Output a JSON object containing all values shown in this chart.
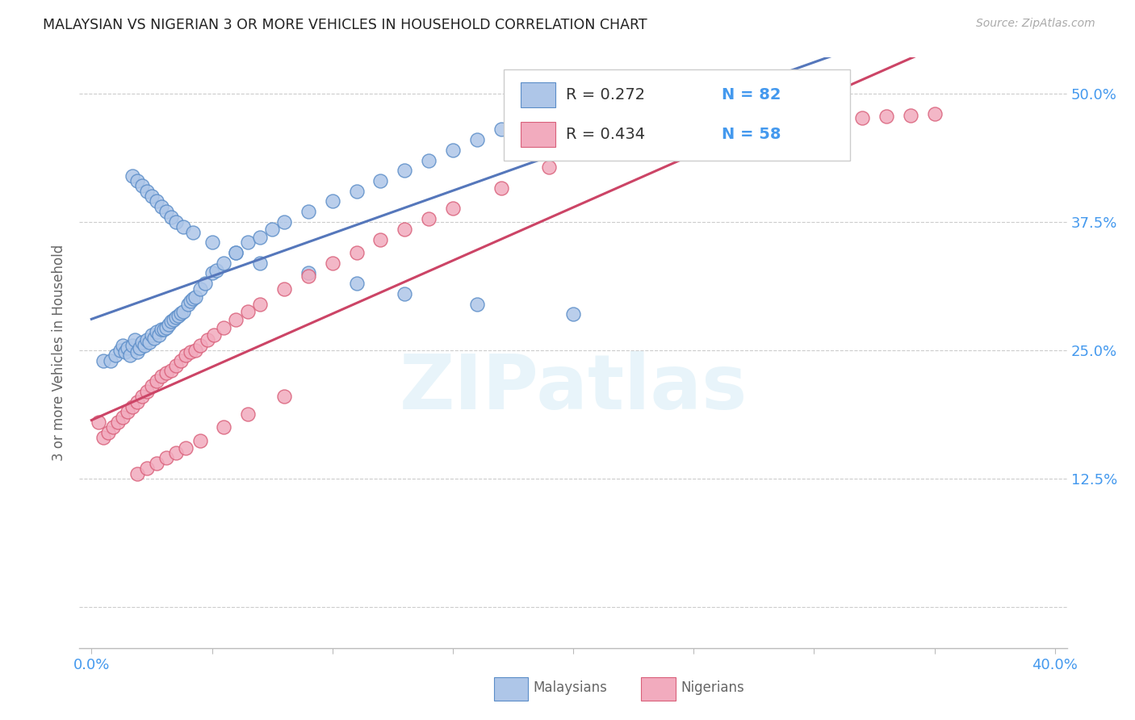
{
  "title": "MALAYSIAN VS NIGERIAN 3 OR MORE VEHICLES IN HOUSEHOLD CORRELATION CHART",
  "source": "Source: ZipAtlas.com",
  "ylabel": "3 or more Vehicles in Household",
  "yticks": [
    0.0,
    0.125,
    0.25,
    0.375,
    0.5
  ],
  "ytick_labels": [
    "",
    "12.5%",
    "25.0%",
    "37.5%",
    "50.0%"
  ],
  "xticks": [
    0.0,
    0.05,
    0.1,
    0.15,
    0.2,
    0.25,
    0.3,
    0.35,
    0.4
  ],
  "xlim": [
    -0.005,
    0.405
  ],
  "ylim": [
    -0.04,
    0.535
  ],
  "watermark": "ZIPatlas",
  "legend_R1": "R = 0.272",
  "legend_N1": "N = 82",
  "legend_R2": "R = 0.434",
  "legend_N2": "N = 58",
  "malaysian_color": "#aec6e8",
  "nigerian_color": "#f2abbe",
  "malaysian_edge_color": "#5b8dc8",
  "nigerian_edge_color": "#d9607a",
  "malaysian_line_color": "#5577bb",
  "nigerian_line_color": "#cc4466",
  "title_color": "#222222",
  "axis_label_color": "#4499ee",
  "source_color": "#aaaaaa",
  "background_color": "#ffffff",
  "grid_color": "#cccccc",
  "malaysian_x": [
    0.005,
    0.008,
    0.01,
    0.012,
    0.013,
    0.014,
    0.015,
    0.016,
    0.017,
    0.018,
    0.019,
    0.02,
    0.021,
    0.022,
    0.023,
    0.024,
    0.025,
    0.026,
    0.027,
    0.028,
    0.029,
    0.03,
    0.031,
    0.032,
    0.033,
    0.034,
    0.035,
    0.036,
    0.037,
    0.038,
    0.04,
    0.041,
    0.042,
    0.043,
    0.045,
    0.047,
    0.05,
    0.052,
    0.055,
    0.06,
    0.065,
    0.07,
    0.075,
    0.08,
    0.09,
    0.1,
    0.11,
    0.12,
    0.13,
    0.14,
    0.15,
    0.16,
    0.17,
    0.19,
    0.2,
    0.21,
    0.22,
    0.23,
    0.24,
    0.26,
    0.28,
    0.3,
    0.017,
    0.019,
    0.021,
    0.023,
    0.025,
    0.027,
    0.029,
    0.031,
    0.033,
    0.035,
    0.038,
    0.042,
    0.05,
    0.06,
    0.07,
    0.09,
    0.11,
    0.13,
    0.16,
    0.2
  ],
  "malaysian_y": [
    0.24,
    0.24,
    0.245,
    0.25,
    0.255,
    0.248,
    0.252,
    0.245,
    0.255,
    0.26,
    0.248,
    0.252,
    0.258,
    0.255,
    0.26,
    0.258,
    0.265,
    0.262,
    0.268,
    0.265,
    0.27,
    0.27,
    0.272,
    0.275,
    0.278,
    0.28,
    0.282,
    0.284,
    0.286,
    0.288,
    0.295,
    0.298,
    0.3,
    0.302,
    0.31,
    0.315,
    0.325,
    0.328,
    0.335,
    0.345,
    0.355,
    0.36,
    0.368,
    0.375,
    0.385,
    0.395,
    0.405,
    0.415,
    0.425,
    0.435,
    0.445,
    0.455,
    0.465,
    0.47,
    0.475,
    0.48,
    0.485,
    0.49,
    0.495,
    0.498,
    0.5,
    0.502,
    0.42,
    0.415,
    0.41,
    0.405,
    0.4,
    0.395,
    0.39,
    0.385,
    0.38,
    0.375,
    0.37,
    0.365,
    0.355,
    0.345,
    0.335,
    0.325,
    0.315,
    0.305,
    0.295,
    0.285
  ],
  "nigerian_x": [
    0.003,
    0.005,
    0.007,
    0.009,
    0.011,
    0.013,
    0.015,
    0.017,
    0.019,
    0.021,
    0.023,
    0.025,
    0.027,
    0.029,
    0.031,
    0.033,
    0.035,
    0.037,
    0.039,
    0.041,
    0.043,
    0.045,
    0.048,
    0.051,
    0.055,
    0.06,
    0.065,
    0.07,
    0.08,
    0.09,
    0.1,
    0.11,
    0.12,
    0.13,
    0.14,
    0.15,
    0.17,
    0.19,
    0.21,
    0.23,
    0.25,
    0.27,
    0.29,
    0.31,
    0.32,
    0.33,
    0.34,
    0.35,
    0.019,
    0.023,
    0.027,
    0.031,
    0.035,
    0.039,
    0.045,
    0.055,
    0.065,
    0.08
  ],
  "nigerian_y": [
    0.18,
    0.165,
    0.17,
    0.175,
    0.18,
    0.185,
    0.19,
    0.195,
    0.2,
    0.205,
    0.21,
    0.215,
    0.22,
    0.225,
    0.228,
    0.23,
    0.235,
    0.24,
    0.245,
    0.248,
    0.25,
    0.255,
    0.26,
    0.265,
    0.272,
    0.28,
    0.288,
    0.295,
    0.31,
    0.322,
    0.335,
    0.345,
    0.358,
    0.368,
    0.378,
    0.388,
    0.408,
    0.428,
    0.445,
    0.458,
    0.462,
    0.468,
    0.472,
    0.475,
    0.476,
    0.478,
    0.479,
    0.48,
    0.13,
    0.135,
    0.14,
    0.145,
    0.15,
    0.155,
    0.162,
    0.175,
    0.188,
    0.205
  ]
}
